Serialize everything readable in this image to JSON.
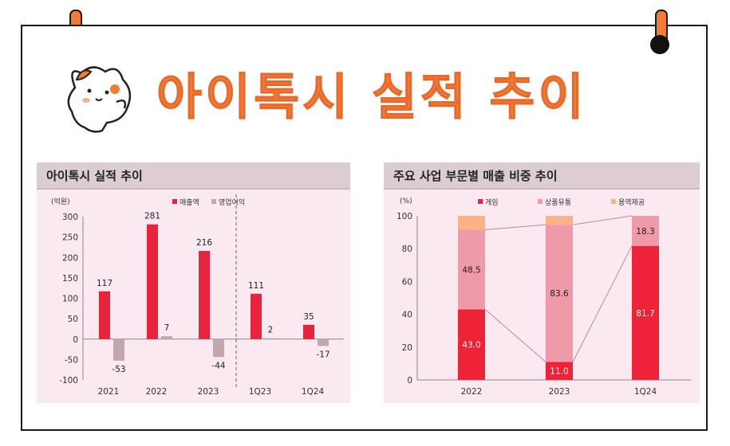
{
  "page": {
    "title": "아이톡시 실적 추이"
  },
  "colors": {
    "accent": "#f47a36",
    "sales": "#e8233e",
    "profit": "#c2a7b0",
    "game": "#ee2338",
    "goods": "#ef9aa8",
    "service": "#f9b384"
  },
  "chart_data": [
    {
      "type": "bar",
      "title": "아이톡시 실적 추이",
      "unit": "(억원)",
      "categories": [
        "2021",
        "2022",
        "2023",
        "1Q23",
        "1Q24"
      ],
      "series": [
        {
          "name": "매출액",
          "values": [
            117,
            281,
            216,
            111,
            35
          ],
          "labels": [
            "117",
            "281",
            "216",
            "111",
            "35"
          ]
        },
        {
          "name": "영업이익",
          "values": [
            -53,
            7,
            -44,
            2,
            -17
          ],
          "labels": [
            "-53",
            "7",
            "-44",
            "2",
            "-17"
          ]
        }
      ],
      "ylim": [
        -100,
        300
      ],
      "yticks": [
        "300",
        "250",
        "200",
        "150",
        "100",
        "50",
        "0",
        "-50",
        "-100"
      ],
      "legend": "top"
    },
    {
      "type": "bar",
      "stacked": true,
      "title": "주요 사업 부문별 매출 비중 추이",
      "unit": "(%)",
      "categories": [
        "2022",
        "2023",
        "1Q24"
      ],
      "series": [
        {
          "name": "게임",
          "values": [
            43.0,
            11.0,
            81.7
          ],
          "labels": [
            "43.0",
            "11.0",
            "81.7"
          ]
        },
        {
          "name": "상품유통",
          "values": [
            48.5,
            83.6,
            18.3
          ],
          "labels": [
            "48.5",
            "83.6",
            "18.3"
          ]
        },
        {
          "name": "용역제공",
          "values": [
            8.5,
            5.4,
            0
          ],
          "labels": [
            "",
            "",
            ""
          ]
        }
      ],
      "ylim": [
        0,
        100
      ],
      "yticks": [
        "100",
        "80",
        "60",
        "40",
        "20",
        "0"
      ],
      "legend": "top"
    }
  ]
}
